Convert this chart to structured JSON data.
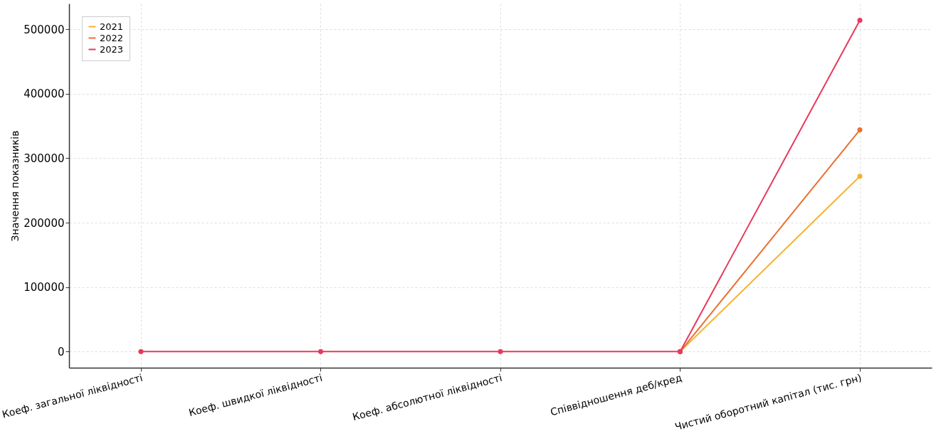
{
  "chart_data": {
    "type": "line",
    "ylabel": "Значення показників",
    "categories": [
      "Коеф. загальної ліквідності",
      "Коеф. швидкої ліквідності",
      "Коеф. абсолютної ліквідності",
      "Співвідношення деб/кред",
      "Чистий оборотний капітал (тис. грн)"
    ],
    "series": [
      {
        "name": "2021",
        "color": "#f7b12a",
        "values": [
          null,
          null,
          null,
          0,
          272000
        ]
      },
      {
        "name": "2022",
        "color": "#ea7030",
        "values": [
          null,
          null,
          null,
          0,
          344000
        ]
      },
      {
        "name": "2023",
        "color": "#e8395c",
        "values": [
          0,
          0,
          0,
          0,
          514000
        ]
      }
    ],
    "ylim": [
      -25000,
      540000
    ],
    "yticks": [
      0,
      100000,
      200000,
      300000,
      400000,
      500000
    ],
    "grid": true,
    "legend": "top left",
    "marker": "circle",
    "line_style": "solid"
  }
}
